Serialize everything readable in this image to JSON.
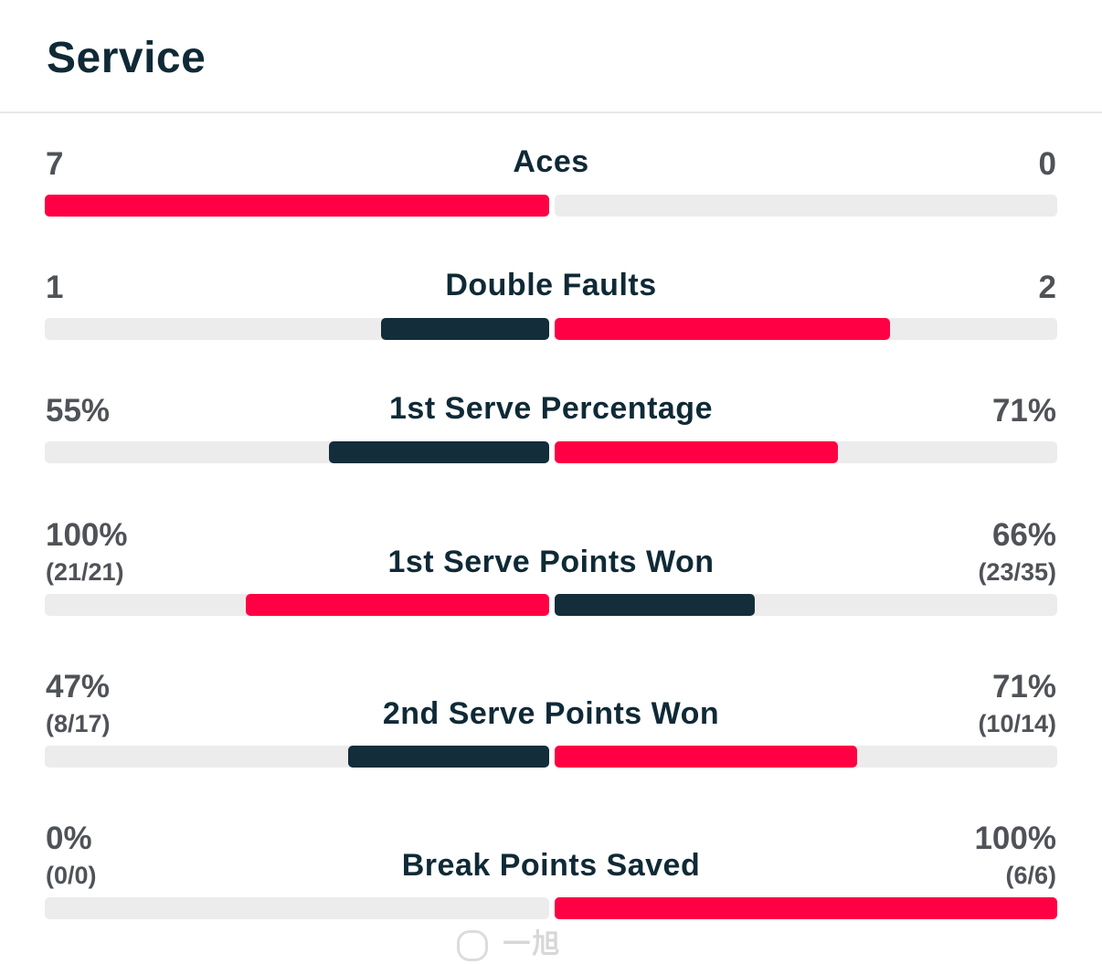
{
  "section_title": "Service",
  "colors": {
    "red": "#ff0044",
    "dark": "#132d3a",
    "track": "#ececec"
  },
  "stats": [
    {
      "label": "Aces",
      "left_value": "7",
      "right_value": "0",
      "left_sub": "",
      "right_sub": "",
      "left_fraction": 1.0,
      "right_fraction": 0.0,
      "left_color": "red",
      "right_color": "dark"
    },
    {
      "label": "Double Faults",
      "left_value": "1",
      "right_value": "2",
      "left_sub": "",
      "right_sub": "",
      "left_fraction": 0.333,
      "right_fraction": 0.667,
      "left_color": "dark",
      "right_color": "red"
    },
    {
      "label": "1st Serve Percentage",
      "left_value": "55%",
      "right_value": "71%",
      "left_sub": "",
      "right_sub": "",
      "left_fraction": 0.437,
      "right_fraction": 0.563,
      "left_color": "dark",
      "right_color": "red"
    },
    {
      "label": "1st Serve Points Won",
      "left_value": "100%",
      "right_value": "66%",
      "left_sub": "(21/21)",
      "right_sub": "(23/35)",
      "left_fraction": 0.602,
      "right_fraction": 0.398,
      "left_color": "red",
      "right_color": "dark"
    },
    {
      "label": "2nd Serve Points Won",
      "left_value": "47%",
      "right_value": "71%",
      "left_sub": "(8/17)",
      "right_sub": "(10/14)",
      "left_fraction": 0.398,
      "right_fraction": 0.602,
      "left_color": "dark",
      "right_color": "red"
    },
    {
      "label": "Break Points Saved",
      "left_value": "0%",
      "right_value": "100%",
      "left_sub": "(0/0)",
      "right_sub": "(6/6)",
      "left_fraction": 0.0,
      "right_fraction": 1.0,
      "left_color": "dark",
      "right_color": "red"
    }
  ],
  "watermark": {
    "text": "一旭"
  }
}
